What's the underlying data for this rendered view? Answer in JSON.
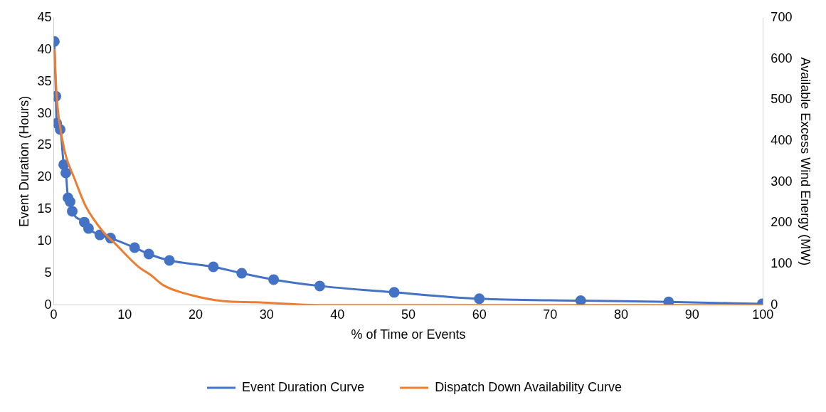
{
  "chart_data": {
    "type": "line",
    "xlabel": "% of Time or Events",
    "ylabel": "Event Duration (Hours)",
    "y2label": "Available Excess Wind Energy (MW)",
    "xlim": [
      0,
      100
    ],
    "xticks": [
      0,
      10,
      20,
      30,
      40,
      50,
      60,
      70,
      80,
      90,
      100
    ],
    "ylim": [
      0,
      45
    ],
    "yticks": [
      0,
      5,
      10,
      15,
      20,
      25,
      30,
      35,
      40,
      45
    ],
    "y2lim": [
      0,
      700
    ],
    "y2ticks": [
      0,
      100,
      200,
      300,
      400,
      500,
      600,
      700
    ],
    "grid": false,
    "legend": "bottom",
    "series": [
      {
        "name": "Event Duration Curve",
        "color": "#4472c4",
        "marker": "circle",
        "x": [
          0.08,
          0.3,
          0.4,
          0.9,
          1.4,
          1.7,
          2.0,
          2.3,
          2.6,
          4.3,
          4.9,
          6.5,
          8.0,
          11.4,
          13.4,
          16.3,
          22.5,
          26.5,
          31,
          37.5,
          48,
          60,
          74.3,
          86.7,
          99.9
        ],
        "values": [
          41.3,
          32.7,
          28.5,
          27.5,
          22,
          20.7,
          16.8,
          16.2,
          14.7,
          13,
          12,
          11,
          10.5,
          9,
          8,
          7,
          6,
          5,
          4,
          3,
          2,
          1,
          0.7,
          0.5,
          0.2
        ]
      },
      {
        "name": "Dispatch Down Availability Curve",
        "color": "#ed7d31",
        "marker": "none",
        "axis": "y2",
        "x": [
          0.08,
          0.4,
          0.7,
          1.6,
          2.9,
          4.5,
          6.9,
          8.7,
          11.9,
          13.7,
          15.5,
          19.5,
          23.8,
          28.5,
          31,
          37,
          40,
          50,
          60,
          70,
          80,
          90,
          100
        ],
        "values": [
          624,
          511,
          456,
          370,
          309,
          241,
          180,
          149,
          94,
          73,
          48,
          24,
          10,
          7,
          5,
          0,
          0,
          0,
          0,
          0,
          0,
          0,
          0
        ]
      }
    ]
  }
}
